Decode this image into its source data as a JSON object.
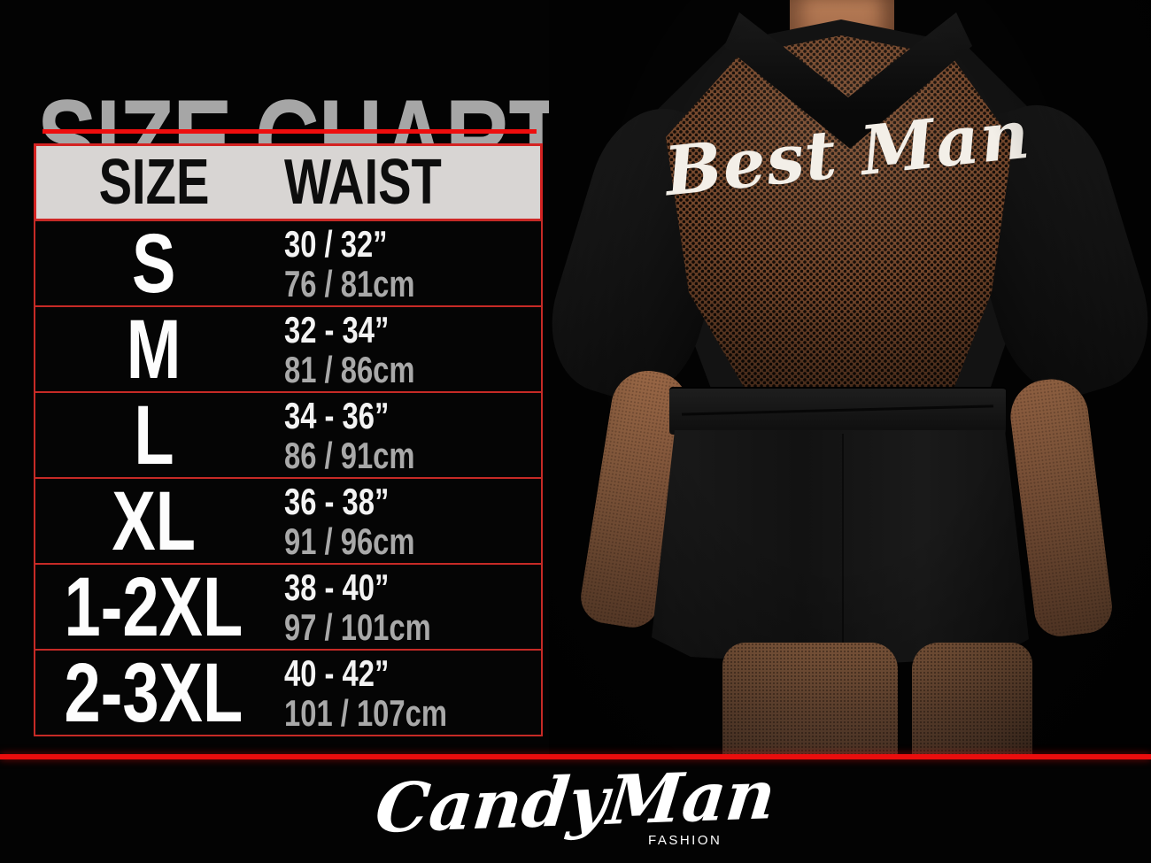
{
  "title": {
    "text": "SIZE CHART"
  },
  "table": {
    "header": {
      "size": "SIZE",
      "waist": "WAIST"
    },
    "rows": [
      {
        "size": "S",
        "waist_in": "30 / 32”",
        "waist_cm": "76 / 81cm"
      },
      {
        "size": "M",
        "waist_in": "32 - 34”",
        "waist_cm": "81 / 86cm"
      },
      {
        "size": "L",
        "waist_in": "34 - 36”",
        "waist_cm": "86 / 91cm"
      },
      {
        "size": "XL",
        "waist_in": "36 - 38”",
        "waist_cm": "91 / 96cm"
      },
      {
        "size": "1-2XL",
        "waist_in": "38 - 40”",
        "waist_cm": "97 / 101cm"
      },
      {
        "size": "2-3XL",
        "waist_in": "40 - 42”",
        "waist_cm": "101 / 107cm"
      }
    ]
  },
  "photo": {
    "garment_text": "Best Man"
  },
  "footer": {
    "brand": "CandyMan",
    "sub_label": "FASHION"
  },
  "colors": {
    "accent_red": "#ea0d0d",
    "row_border_red": "#c62a26",
    "title_gray": "#a6a6a6",
    "header_bg": "#d8d5d3",
    "size_text_white": "#fdfdfd",
    "cm_text_gray": "#a9a9a9",
    "mesh_brown": "#72452a",
    "skin_tone": "#a06c49",
    "background_black": "#030303"
  }
}
